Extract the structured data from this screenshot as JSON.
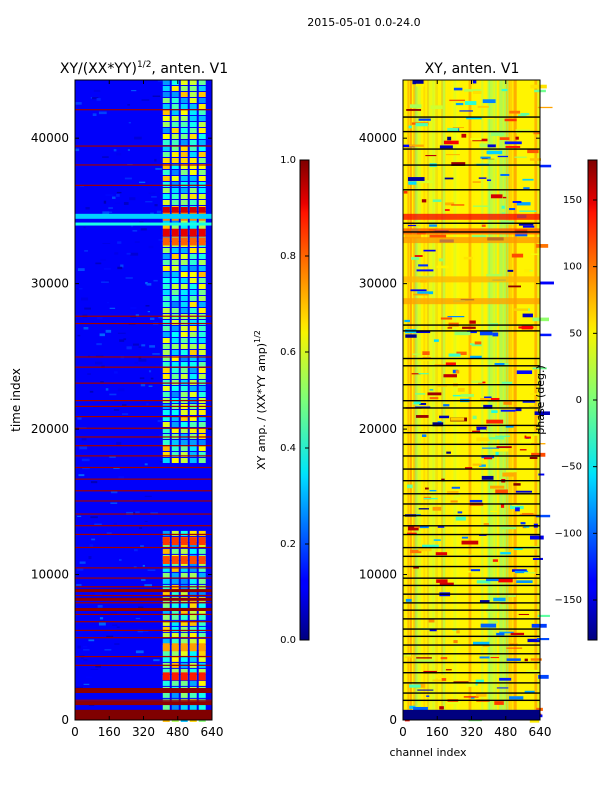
{
  "figure_title": "2015-05-01 0.0-24.0",
  "chart_data": [
    {
      "type": "heatmap",
      "title_main": "XY/(XX*YY)",
      "title_sup": "1/2",
      "title_tail": ", anten. V1",
      "xlabel": "",
      "ylabel": "time index",
      "xlim": [
        0,
        640
      ],
      "ylim": [
        0,
        44000
      ],
      "xticks": [
        0,
        160,
        320,
        480,
        640
      ],
      "yticks": [
        0,
        10000,
        20000,
        30000,
        40000
      ],
      "colorbar": {
        "label_main": "XY amp. / (XX*YY amp)",
        "label_sup": "1/2",
        "range": [
          0.0,
          1.0
        ],
        "ticks": [
          "0.0",
          "0.2",
          "0.4",
          "0.6",
          "0.8",
          "1.0"
        ],
        "colormap": "jet"
      },
      "features": {
        "background_value": 0.12,
        "bright_channel_band": [
          410,
          620
        ],
        "bright_band_time_ranges": [
          [
            0,
            13000
          ],
          [
            18000,
            44000
          ]
        ],
        "high_value_rows": [
          35000,
          34500,
          33500,
          12500,
          9000,
          5000,
          3000,
          0
        ]
      }
    },
    {
      "type": "heatmap",
      "title_main": "XY, anten. V1",
      "xlabel": "channel index",
      "ylabel": "",
      "xlim": [
        0,
        640
      ],
      "ylim": [
        0,
        44000
      ],
      "xticks": [
        0,
        160,
        320,
        480,
        640
      ],
      "yticks": [
        0,
        10000,
        20000,
        30000,
        40000
      ],
      "colorbar": {
        "label": "phase (deg.)",
        "range": [
          -180,
          180
        ],
        "ticks": [
          "−150",
          "−100",
          "−50",
          "0",
          "50",
          "100",
          "150"
        ],
        "colormap": "jet"
      },
      "features": {
        "background_phase_deg": 20,
        "flagged_rows_black": true
      }
    }
  ]
}
